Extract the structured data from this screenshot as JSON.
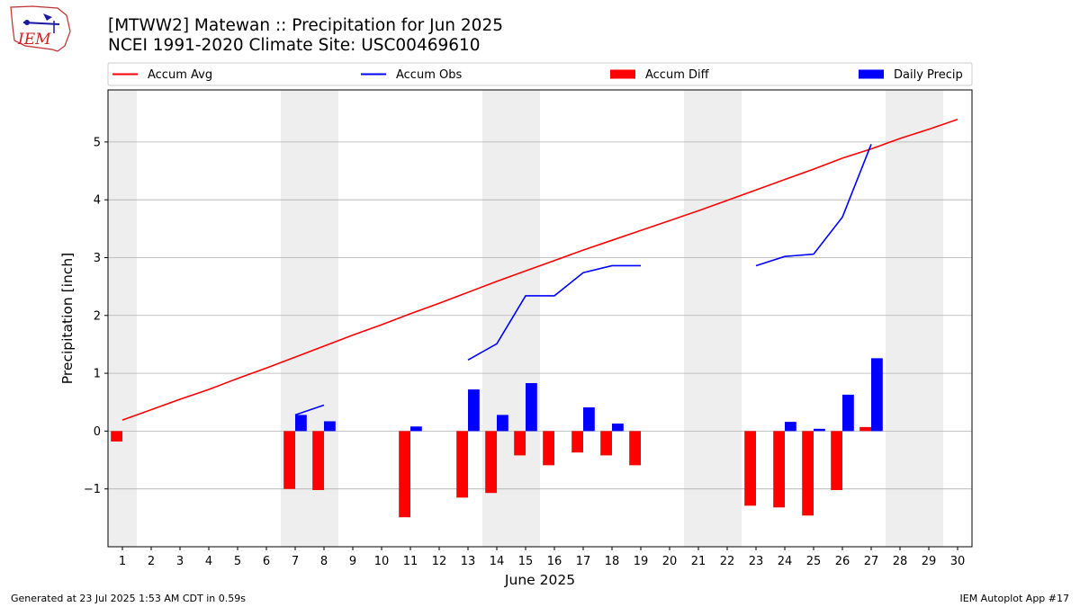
{
  "logo": {
    "text": "IEM"
  },
  "title_line1": "[MTWW2] Matewan :: Precipitation for Jun 2025",
  "title_line2": "NCEI 1991-2020 Climate Site: USC00469610",
  "footer_left": "Generated at 23 Jul 2025 1:53 AM CDT in 0.59s",
  "footer_right": "IEM Autoplot App #17",
  "colors": {
    "accum_avg": "#ff0000",
    "accum_obs": "#0000ff",
    "accum_diff": "#ff0000",
    "daily_precip": "#0000ff",
    "weekend_shade": "#eeeeee",
    "grid": "#b0b0b0"
  },
  "chart_data": {
    "type": "bar",
    "xlabel": "June 2025",
    "ylabel": "Precipitation [inch]",
    "xlim": [
      0.5,
      30.5
    ],
    "ylim": [
      -2.0,
      5.9
    ],
    "yticks": [
      -1,
      0,
      1,
      2,
      3,
      4,
      5
    ],
    "ytick_labels": [
      "−1",
      "0",
      "1",
      "2",
      "3",
      "4",
      "5"
    ],
    "x": [
      1,
      2,
      3,
      4,
      5,
      6,
      7,
      8,
      9,
      10,
      11,
      12,
      13,
      14,
      15,
      16,
      17,
      18,
      19,
      20,
      21,
      22,
      23,
      24,
      25,
      26,
      27,
      28,
      29,
      30
    ],
    "x_tick_labels": [
      "1",
      "2",
      "3",
      "4",
      "5",
      "6",
      "7",
      "8",
      "9",
      "10",
      "11",
      "12",
      "13",
      "14",
      "15",
      "16",
      "17",
      "18",
      "19",
      "20",
      "21",
      "22",
      "23",
      "24",
      "25",
      "26",
      "27",
      "28",
      "29",
      "30"
    ],
    "grid": "horizontal",
    "legend_position": "top",
    "weekend_spans": [
      [
        0.5,
        1.5
      ],
      [
        6.5,
        8.5
      ],
      [
        13.5,
        15.5
      ],
      [
        20.5,
        22.5
      ],
      [
        27.5,
        29.5
      ]
    ],
    "series": [
      {
        "name": "Accum Avg",
        "kind": "line",
        "values": [
          0.19,
          0.37,
          0.55,
          0.72,
          0.91,
          1.09,
          1.28,
          1.47,
          1.66,
          1.84,
          2.03,
          2.21,
          2.4,
          2.59,
          2.77,
          2.95,
          3.13,
          3.3,
          3.47,
          3.64,
          3.81,
          3.99,
          4.17,
          4.35,
          4.53,
          4.72,
          4.88,
          5.06,
          5.22,
          5.39
        ]
      },
      {
        "name": "Accum Obs",
        "kind": "line",
        "values": [
          null,
          null,
          null,
          null,
          null,
          null,
          0.28,
          0.45,
          null,
          null,
          null,
          null,
          1.23,
          1.51,
          2.34,
          2.34,
          2.74,
          2.86,
          2.86,
          null,
          null,
          null,
          2.86,
          3.02,
          3.06,
          3.7,
          4.96,
          null,
          null,
          null
        ]
      },
      {
        "name": "Accum Diff",
        "kind": "bar",
        "values": [
          -0.18,
          null,
          null,
          null,
          null,
          null,
          -1.0,
          -1.02,
          null,
          null,
          -1.49,
          null,
          -1.15,
          -1.07,
          -0.42,
          -0.59,
          -0.37,
          -0.42,
          -0.59,
          null,
          null,
          null,
          -1.29,
          -1.32,
          -1.46,
          -1.02,
          0.07,
          null,
          null,
          null
        ]
      },
      {
        "name": "Daily Precip",
        "kind": "bar",
        "values": [
          null,
          null,
          null,
          null,
          null,
          null,
          0.28,
          0.17,
          null,
          null,
          0.08,
          null,
          0.72,
          0.28,
          0.83,
          null,
          0.41,
          0.13,
          null,
          null,
          null,
          null,
          null,
          0.16,
          0.04,
          0.63,
          1.26,
          null,
          null,
          null
        ]
      }
    ]
  }
}
